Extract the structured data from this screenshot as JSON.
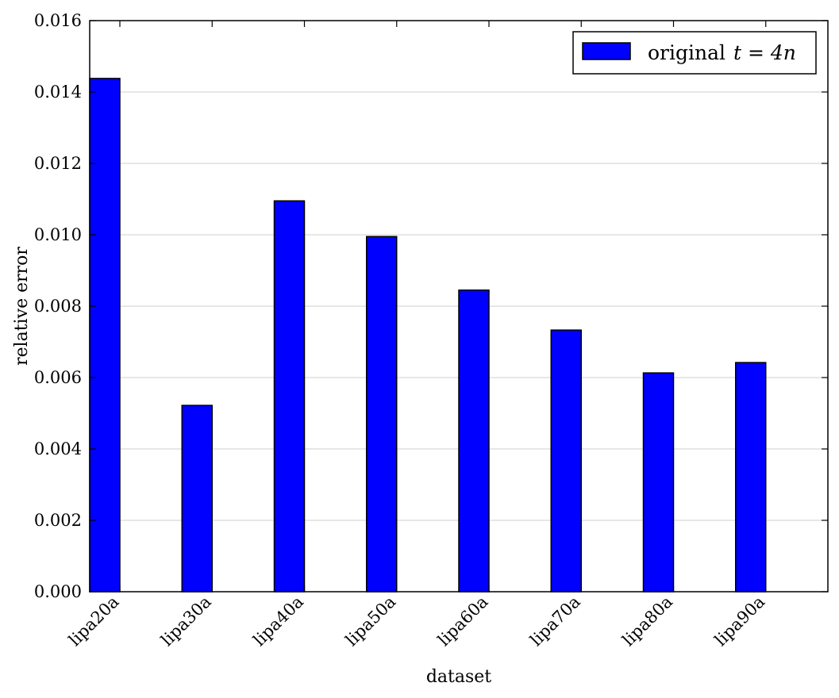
{
  "chart_data": {
    "type": "bar",
    "categories": [
      "lipa20a",
      "lipa30a",
      "lipa40a",
      "lipa50a",
      "lipa60a",
      "lipa70a",
      "lipa80a",
      "lipa90a"
    ],
    "series": [
      {
        "name": "original t = 4n",
        "values": [
          0.01438,
          0.00522,
          0.01095,
          0.00995,
          0.00845,
          0.00733,
          0.00613,
          0.00642
        ],
        "color": "#0000ff"
      }
    ],
    "legend": {
      "label_text": "original",
      "label_math": "t = 4n",
      "position": "top-right"
    },
    "xlabel": "dataset",
    "ylabel": "relative error",
    "ylim": [
      0,
      0.016
    ],
    "yticks": [
      "0.000",
      "0.002",
      "0.004",
      "0.006",
      "0.008",
      "0.010",
      "0.012",
      "0.014",
      "0.016"
    ],
    "grid": true
  }
}
